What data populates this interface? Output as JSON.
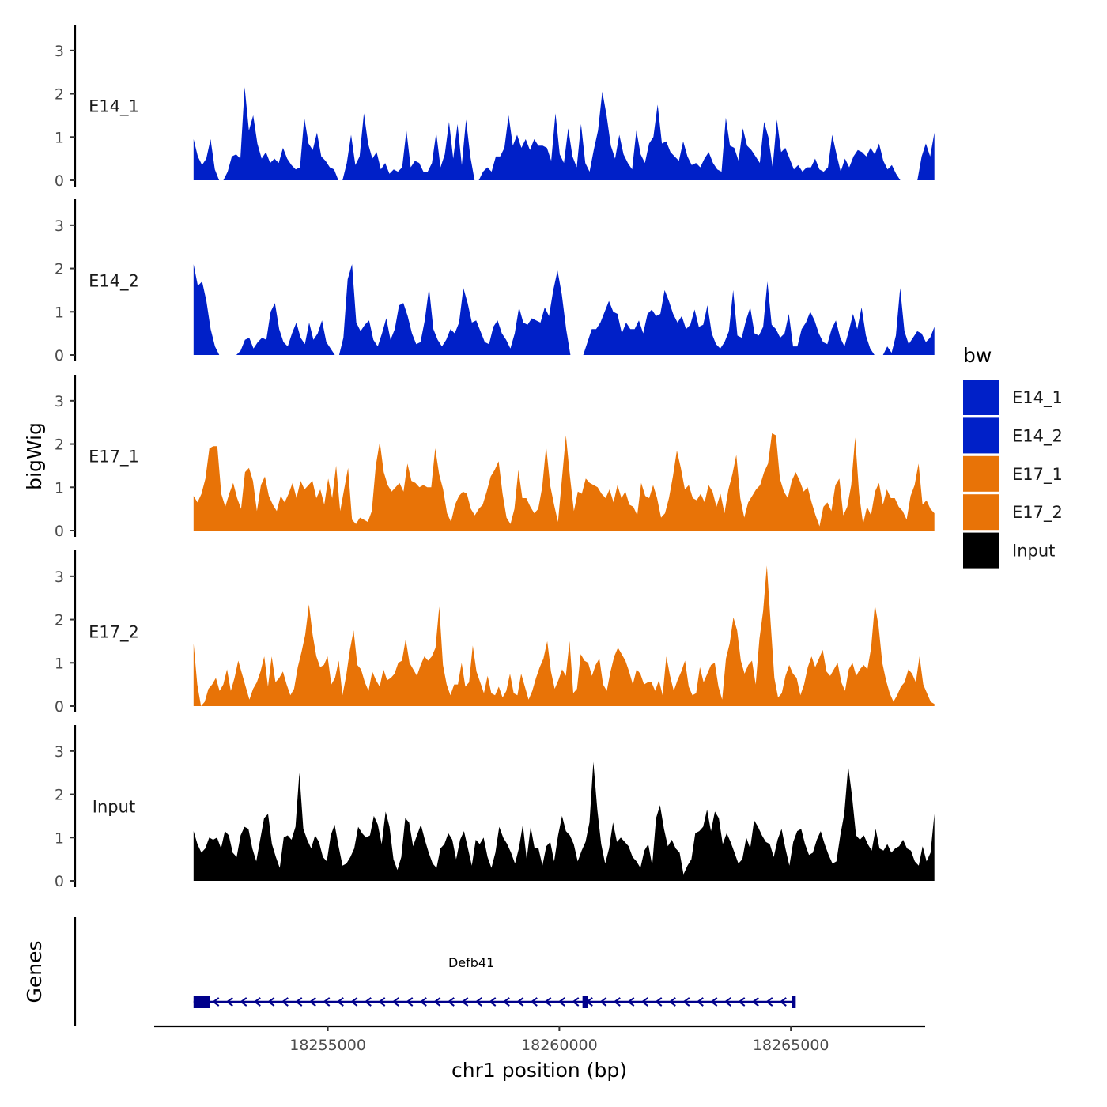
{
  "chart_data": {
    "type": "area",
    "xlabel": "chr1 position (bp)",
    "ylabel": "bigWig",
    "genes_label": "Genes",
    "xlim": [
      18251250,
      18267900
    ],
    "x_ticks": [
      18255000,
      18260000,
      18265000
    ],
    "x_tick_labels": [
      "18255000",
      "18260000",
      "18265000"
    ],
    "ylim": [
      0,
      3.6
    ],
    "y_ticks": [
      0,
      1,
      2,
      3
    ],
    "y_tick_labels": [
      "0",
      "1",
      "2",
      "3"
    ],
    "signal_range": [
      18252100,
      18268100
    ],
    "legend": {
      "title": "bw",
      "entries": [
        {
          "name": "E14_1",
          "color": "#0020C8"
        },
        {
          "name": "E14_2",
          "color": "#0020C8"
        },
        {
          "name": "E17_1",
          "color": "#E87307"
        },
        {
          "name": "E17_2",
          "color": "#E87307"
        },
        {
          "name": "Input",
          "color": "#000000"
        }
      ]
    },
    "series": [
      {
        "name": "E14_1",
        "color": "#0020C8",
        "values": [
          0.95,
          0.55,
          0.35,
          0.5,
          0.95,
          0.25,
          0,
          0,
          0.2,
          0.55,
          0.6,
          0.5,
          2.15,
          1.15,
          1.5,
          0.85,
          0.5,
          0.65,
          0.4,
          0.5,
          0.4,
          0.75,
          0.5,
          0.35,
          0.25,
          0.3,
          1.45,
          0.85,
          0.7,
          1.1,
          0.55,
          0.45,
          0.3,
          0.25,
          0,
          0,
          0.4,
          1.05,
          0.35,
          0.55,
          1.55,
          0.85,
          0.5,
          0.65,
          0.25,
          0.4,
          0.15,
          0.25,
          0.2,
          0.3,
          1.15,
          0.3,
          0.45,
          0.4,
          0.2,
          0.2,
          0.4,
          1.1,
          0.3,
          0.6,
          1.35,
          0.5,
          1.3,
          0.35,
          1.4,
          0.55,
          0,
          0,
          0.2,
          0.3,
          0.2,
          0.55,
          0.55,
          0.75,
          1.5,
          0.8,
          1.05,
          0.75,
          0.95,
          0.7,
          0.95,
          0.8,
          0.8,
          0.75,
          0.45,
          1.55,
          0.6,
          0.4,
          1.2,
          0.55,
          0.3,
          1.3,
          0.4,
          0.2,
          0.7,
          1.15,
          2.05,
          1.5,
          0.8,
          0.5,
          1.05,
          0.6,
          0.4,
          0.25,
          1.15,
          0.6,
          0.4,
          0.85,
          1.0,
          1.75,
          0.85,
          0.9,
          0.65,
          0.55,
          0.45,
          0.9,
          0.55,
          0.35,
          0.4,
          0.3,
          0.5,
          0.65,
          0.4,
          0.25,
          0.2,
          1.45,
          0.8,
          0.75,
          0.45,
          1.2,
          0.8,
          0.7,
          0.55,
          0.4,
          1.35,
          1.0,
          0.3,
          1.4,
          0.65,
          0.75,
          0.5,
          0.25,
          0.35,
          0.2,
          0.3,
          0.3,
          0.5,
          0.25,
          0.2,
          0.3,
          1.05,
          0.6,
          0.2,
          0.5,
          0.3,
          0.55,
          0.7,
          0.65,
          0.55,
          0.75,
          0.6,
          0.85,
          0.45,
          0.25,
          0.35,
          0.15,
          0,
          0,
          0,
          0,
          0,
          0.55,
          0.85,
          0.55,
          1.1
        ]
      },
      {
        "name": "E14_2",
        "color": "#0020C8",
        "values": [
          2.1,
          1.6,
          1.7,
          1.25,
          0.6,
          0.2,
          0,
          0,
          0,
          0,
          0,
          0.1,
          0.35,
          0.4,
          0.15,
          0.3,
          0.4,
          0.35,
          1.0,
          1.2,
          0.6,
          0.3,
          0.2,
          0.5,
          0.75,
          0.4,
          0.25,
          0.75,
          0.35,
          0.5,
          0.8,
          0.3,
          0.15,
          0,
          0,
          0.4,
          1.75,
          2.1,
          0.75,
          0.55,
          0.7,
          0.8,
          0.35,
          0.2,
          0.5,
          0.85,
          0.35,
          0.6,
          1.15,
          1.2,
          0.9,
          0.5,
          0.25,
          0.3,
          0.8,
          1.55,
          0.6,
          0.35,
          0.2,
          0.35,
          0.6,
          0.5,
          0.75,
          1.55,
          1.2,
          0.75,
          0.8,
          0.55,
          0.3,
          0.25,
          0.65,
          0.8,
          0.5,
          0.35,
          0.15,
          0.5,
          1.1,
          0.75,
          0.7,
          0.85,
          0.8,
          0.75,
          1.1,
          0.9,
          1.5,
          1.95,
          1.4,
          0.6,
          0,
          0,
          0,
          0,
          0.3,
          0.6,
          0.6,
          0.75,
          1.0,
          1.25,
          1.0,
          0.95,
          0.5,
          0.75,
          0.6,
          0.6,
          0.8,
          0.5,
          0.95,
          1.05,
          0.9,
          0.95,
          1.5,
          1.25,
          0.95,
          0.75,
          0.9,
          0.6,
          0.7,
          1.05,
          0.65,
          0.7,
          1.15,
          0.5,
          0.25,
          0.15,
          0.3,
          0.55,
          1.5,
          0.45,
          0.4,
          0.8,
          1.1,
          0.5,
          0.45,
          0.65,
          1.7,
          0.7,
          0.6,
          0.4,
          0.5,
          0.95,
          0.2,
          0.2,
          0.6,
          0.75,
          1.0,
          0.8,
          0.5,
          0.3,
          0.25,
          0.6,
          0.8,
          0.4,
          0.2,
          0.55,
          0.95,
          0.6,
          1.1,
          0.45,
          0.15,
          0,
          0,
          0,
          0.2,
          0.05,
          0.45,
          1.55,
          0.55,
          0.25,
          0.4,
          0.55,
          0.5,
          0.3,
          0.4,
          0.65
        ]
      },
      {
        "name": "E17_1",
        "color": "#E87307",
        "values": [
          0.8,
          0.65,
          0.85,
          1.2,
          1.9,
          1.95,
          1.95,
          0.85,
          0.55,
          0.85,
          1.1,
          0.75,
          0.5,
          1.35,
          1.45,
          1.15,
          0.45,
          1.05,
          1.25,
          0.8,
          0.6,
          0.45,
          0.8,
          0.65,
          0.85,
          1.1,
          0.75,
          1.15,
          0.95,
          1.05,
          1.15,
          0.75,
          0.95,
          0.6,
          1.2,
          0.75,
          1.5,
          0.45,
          0.95,
          1.45,
          0.25,
          0.15,
          0.3,
          0.25,
          0.2,
          0.45,
          1.5,
          2.05,
          1.35,
          1.05,
          0.9,
          1.0,
          1.1,
          0.9,
          1.55,
          1.15,
          1.1,
          1.0,
          1.05,
          1.0,
          1.0,
          1.9,
          1.3,
          0.95,
          0.4,
          0.2,
          0.6,
          0.8,
          0.9,
          0.85,
          0.5,
          0.35,
          0.5,
          0.6,
          0.9,
          1.25,
          1.4,
          1.6,
          0.85,
          0.3,
          0.15,
          0.5,
          1.4,
          0.75,
          0.75,
          0.55,
          0.4,
          0.5,
          1.0,
          1.95,
          1.05,
          0.6,
          0.2,
          1.2,
          2.2,
          1.25,
          0.45,
          0.9,
          0.85,
          1.2,
          1.1,
          1.05,
          1.0,
          0.85,
          0.75,
          0.95,
          0.65,
          1.05,
          0.75,
          0.9,
          0.6,
          0.55,
          0.35,
          1.1,
          0.8,
          0.75,
          1.05,
          0.75,
          0.3,
          0.4,
          0.75,
          1.25,
          1.85,
          1.45,
          0.95,
          1.05,
          0.75,
          0.7,
          0.85,
          0.65,
          1.05,
          0.9,
          0.55,
          0.85,
          0.4,
          0.95,
          1.3,
          1.75,
          0.75,
          0.3,
          0.65,
          0.8,
          0.95,
          1.05,
          1.35,
          1.55,
          2.25,
          2.2,
          1.2,
          0.9,
          0.75,
          1.15,
          1.35,
          1.15,
          0.9,
          1.0,
          0.65,
          0.35,
          0.1,
          0.55,
          0.65,
          0.45,
          1.05,
          1.2,
          0.35,
          0.55,
          1.05,
          2.15,
          0.85,
          0.15,
          0.55,
          0.35,
          0.9,
          1.1,
          0.6,
          0.95,
          0.75,
          0.75,
          0.55,
          0.45,
          0.25,
          0.8,
          1.05,
          1.55,
          0.6,
          0.7,
          0.5,
          0.4
        ]
      },
      {
        "name": "E17_2",
        "color": "#E87307",
        "values": [
          1.45,
          0.5,
          0,
          0.1,
          0.4,
          0.5,
          0.65,
          0.35,
          0.5,
          0.85,
          0.35,
          0.65,
          1.05,
          0.75,
          0.45,
          0.15,
          0.4,
          0.55,
          0.8,
          1.15,
          0.45,
          1.15,
          0.55,
          0.65,
          0.8,
          0.5,
          0.25,
          0.4,
          0.9,
          1.25,
          1.65,
          2.35,
          1.65,
          1.15,
          0.9,
          0.95,
          1.15,
          0.5,
          0.65,
          1.05,
          0.25,
          0.7,
          1.3,
          1.75,
          0.95,
          0.85,
          0.55,
          0.35,
          0.8,
          0.6,
          0.45,
          0.85,
          0.6,
          0.65,
          0.75,
          1.0,
          1.05,
          1.55,
          1.0,
          0.85,
          0.7,
          0.95,
          1.15,
          1.05,
          1.15,
          1.35,
          2.3,
          0.95,
          0.5,
          0.25,
          0.5,
          0.5,
          1.0,
          0.45,
          0.55,
          1.4,
          0.8,
          0.55,
          0.3,
          0.7,
          0.3,
          0.25,
          0.45,
          0.2,
          0.35,
          0.75,
          0.3,
          0.25,
          0.75,
          0.45,
          0.15,
          0.35,
          0.65,
          0.9,
          1.1,
          1.5,
          0.8,
          0.4,
          0.6,
          0.85,
          0.7,
          1.5,
          0.3,
          0.4,
          1.2,
          1.05,
          1.0,
          0.7,
          0.95,
          1.1,
          0.5,
          0.35,
          0.8,
          1.15,
          1.35,
          1.2,
          1.05,
          0.8,
          0.5,
          0.85,
          0.75,
          0.5,
          0.55,
          0.55,
          0.35,
          0.6,
          0.25,
          1.15,
          0.7,
          0.35,
          0.6,
          0.8,
          1.05,
          0.45,
          0.25,
          0.3,
          0.9,
          0.55,
          0.75,
          0.95,
          1.0,
          0.45,
          0.15,
          1.1,
          1.45,
          2.05,
          1.75,
          1.05,
          0.75,
          0.95,
          1.05,
          0.5,
          1.55,
          2.2,
          3.25,
          1.95,
          0.65,
          0.2,
          0.3,
          0.7,
          0.95,
          0.75,
          0.65,
          0.25,
          0.5,
          0.9,
          1.15,
          0.9,
          1.1,
          1.3,
          0.8,
          0.7,
          0.85,
          1.0,
          0.55,
          0.35,
          0.85,
          1.0,
          0.7,
          0.85,
          0.95,
          0.85,
          1.35,
          2.35,
          1.85,
          1.0,
          0.6,
          0.3,
          0.1,
          0.25,
          0.45,
          0.55,
          0.85,
          0.75,
          0.55,
          1.15,
          0.5,
          0.3,
          0.1,
          0.05
        ]
      },
      {
        "name": "Input",
        "color": "#000000",
        "values": [
          1.15,
          0.85,
          0.65,
          0.75,
          1.0,
          0.95,
          1.0,
          0.75,
          1.15,
          1.05,
          0.65,
          0.55,
          1.05,
          1.25,
          1.2,
          0.75,
          0.45,
          0.95,
          1.45,
          1.55,
          0.85,
          0.55,
          0.3,
          1.0,
          1.05,
          0.95,
          1.25,
          2.5,
          1.2,
          0.95,
          0.75,
          1.05,
          0.9,
          0.55,
          0.45,
          1.05,
          1.3,
          0.8,
          0.35,
          0.4,
          0.55,
          0.75,
          1.25,
          1.1,
          1.0,
          1.05,
          1.5,
          1.3,
          0.85,
          1.6,
          1.25,
          0.5,
          0.25,
          0.55,
          1.45,
          1.35,
          0.8,
          1.05,
          1.3,
          0.95,
          0.65,
          0.4,
          0.3,
          0.75,
          0.85,
          1.1,
          0.95,
          0.5,
          0.95,
          1.15,
          0.75,
          0.35,
          0.95,
          0.85,
          1.0,
          0.55,
          0.3,
          0.65,
          1.25,
          1.0,
          0.85,
          0.65,
          0.4,
          0.75,
          1.3,
          0.5,
          1.25,
          0.75,
          0.75,
          0.35,
          0.8,
          0.9,
          0.45,
          1.05,
          1.5,
          1.15,
          1.05,
          0.85,
          0.45,
          0.7,
          0.9,
          1.35,
          2.75,
          1.65,
          0.85,
          0.4,
          0.75,
          1.35,
          0.9,
          1.0,
          0.9,
          0.8,
          0.55,
          0.45,
          0.3,
          0.7,
          0.85,
          0.35,
          1.45,
          1.75,
          1.2,
          0.8,
          0.95,
          0.75,
          0.65,
          0.15,
          0.35,
          0.5,
          1.1,
          1.15,
          1.25,
          1.65,
          1.15,
          1.6,
          1.45,
          0.85,
          1.1,
          0.9,
          0.65,
          0.4,
          0.5,
          1.0,
          0.75,
          1.4,
          1.25,
          1.05,
          0.9,
          0.85,
          0.55,
          0.95,
          1.2,
          0.75,
          0.35,
          0.9,
          1.15,
          1.2,
          0.85,
          0.6,
          0.65,
          0.95,
          1.15,
          0.85,
          0.6,
          0.4,
          0.45,
          1.05,
          1.55,
          2.65,
          1.95,
          1.05,
          0.95,
          1.05,
          0.85,
          0.7,
          1.2,
          0.75,
          0.7,
          0.85,
          0.65,
          0.75,
          0.8,
          0.95,
          0.75,
          0.7,
          0.45,
          0.35,
          0.8,
          0.45,
          0.65,
          1.55
        ]
      }
    ],
    "genes": [
      {
        "name": "Defb41",
        "strand": "-",
        "start": 18252100,
        "end": 18265100,
        "exons": [
          [
            18252100,
            18252450
          ],
          [
            18260500,
            18260620
          ],
          [
            18265020,
            18265100
          ]
        ]
      }
    ]
  }
}
